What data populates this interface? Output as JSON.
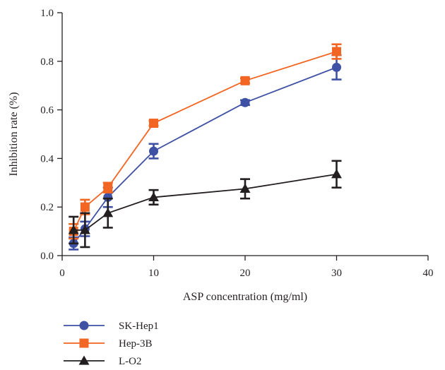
{
  "chart_data": {
    "type": "line",
    "xlabel": "ASP concentration (mg/ml)",
    "ylabel": "Inhibition rate (%)",
    "xlim": [
      0,
      40
    ],
    "ylim": [
      0,
      1.0
    ],
    "x_ticks": [
      "0",
      "10",
      "20",
      "30",
      "40"
    ],
    "y_ticks": [
      "0.0",
      "0.2",
      "0.4",
      "0.6",
      "0.8",
      "1.0"
    ],
    "grid": false,
    "legend_position": "bottom-left",
    "x": [
      1.25,
      2.5,
      5,
      10,
      20,
      30
    ],
    "series": [
      {
        "name": "SK-Hep1",
        "color": "#3f51a4",
        "marker": "circle",
        "values": [
          0.05,
          0.11,
          0.24,
          0.43,
          0.63,
          0.775
        ],
        "errors": [
          0.025,
          0.03,
          0.04,
          0.03,
          0.01,
          0.05
        ]
      },
      {
        "name": "Hep-3B",
        "color": "#f26522",
        "marker": "square",
        "values": [
          0.1,
          0.2,
          0.28,
          0.545,
          0.72,
          0.84
        ],
        "errors": [
          0.03,
          0.03,
          0.02,
          0.01,
          0.01,
          0.03
        ]
      },
      {
        "name": "L-O2",
        "color": "#231f20",
        "marker": "triangle",
        "values": [
          0.105,
          0.105,
          0.175,
          0.24,
          0.275,
          0.335
        ],
        "errors": [
          0.055,
          0.07,
          0.06,
          0.03,
          0.04,
          0.055
        ]
      }
    ]
  }
}
